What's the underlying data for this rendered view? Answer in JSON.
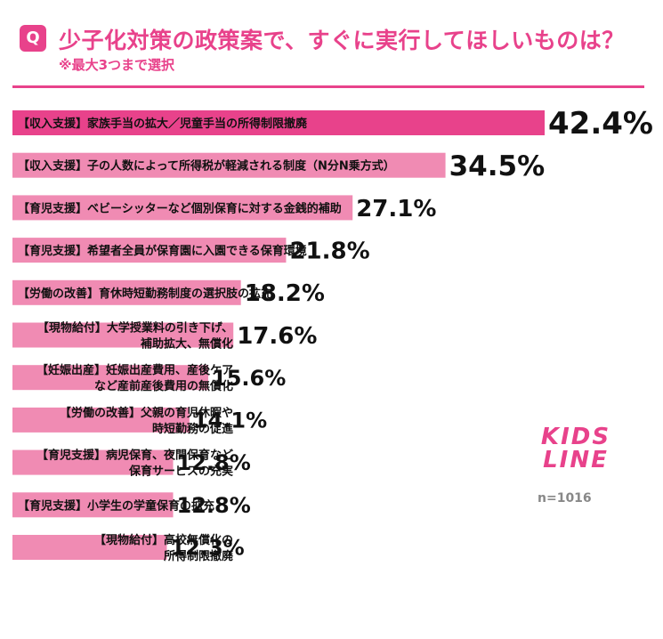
{
  "header": {
    "badge": "Q",
    "title": "少子化対策の政策案で、すぐに実行してほしいものは？",
    "subtitle": "※最大3つまで選択"
  },
  "colors": {
    "accent": "#e8428b",
    "top_bar": "#e8428b",
    "bar": "#f08bb3"
  },
  "chart_data": {
    "type": "bar",
    "orientation": "horizontal",
    "title": "少子化対策の政策案で、すぐに実行してほしいものは？",
    "unit": "%",
    "categories": [
      [
        "【収入支援】家族手当の拡大／児童手当の所得制限撤廃"
      ],
      [
        "【収入支援】子の人数によって所得税が軽減される制度（N分N乗方式）"
      ],
      [
        "【育児支援】ベビーシッターなど個別保育に対する金銭的補助"
      ],
      [
        "【育児支援】希望者全員が保育園に入園できる保育環境"
      ],
      [
        "【労働の改善】育休時短勤務制度の選択肢の拡充"
      ],
      [
        "【現物給付】大学授業料の引き下げ、",
        "補助拡大、無償化"
      ],
      [
        "【妊娠出産】妊娠出産費用、産後ケア",
        "など産前産後費用の無償化"
      ],
      [
        "【労働の改善】父親の育児休暇や",
        "時短勤務の促進"
      ],
      [
        "【育児支援】病児保育、夜間保育など",
        "保育サービスの充実"
      ],
      [
        "【育児支援】小学生の学童保育の拡充"
      ],
      [
        "【現物給付】高校無償化の",
        "所得制限撤廃"
      ]
    ],
    "values": [
      42.4,
      34.5,
      27.1,
      21.8,
      18.2,
      17.6,
      15.6,
      14.1,
      12.8,
      12.8,
      12.3
    ],
    "value_labels": [
      "42.4%",
      "34.5%",
      "27.1%",
      "21.8%",
      "18.2%",
      "17.6%",
      "15.6%",
      "14.1%",
      "12.8%",
      "12.8%",
      "12.3%"
    ],
    "xlim": [
      0,
      42.4
    ],
    "sample_size": "n=1016"
  },
  "logo": {
    "line1": "KIDS",
    "line2": "LINE"
  }
}
